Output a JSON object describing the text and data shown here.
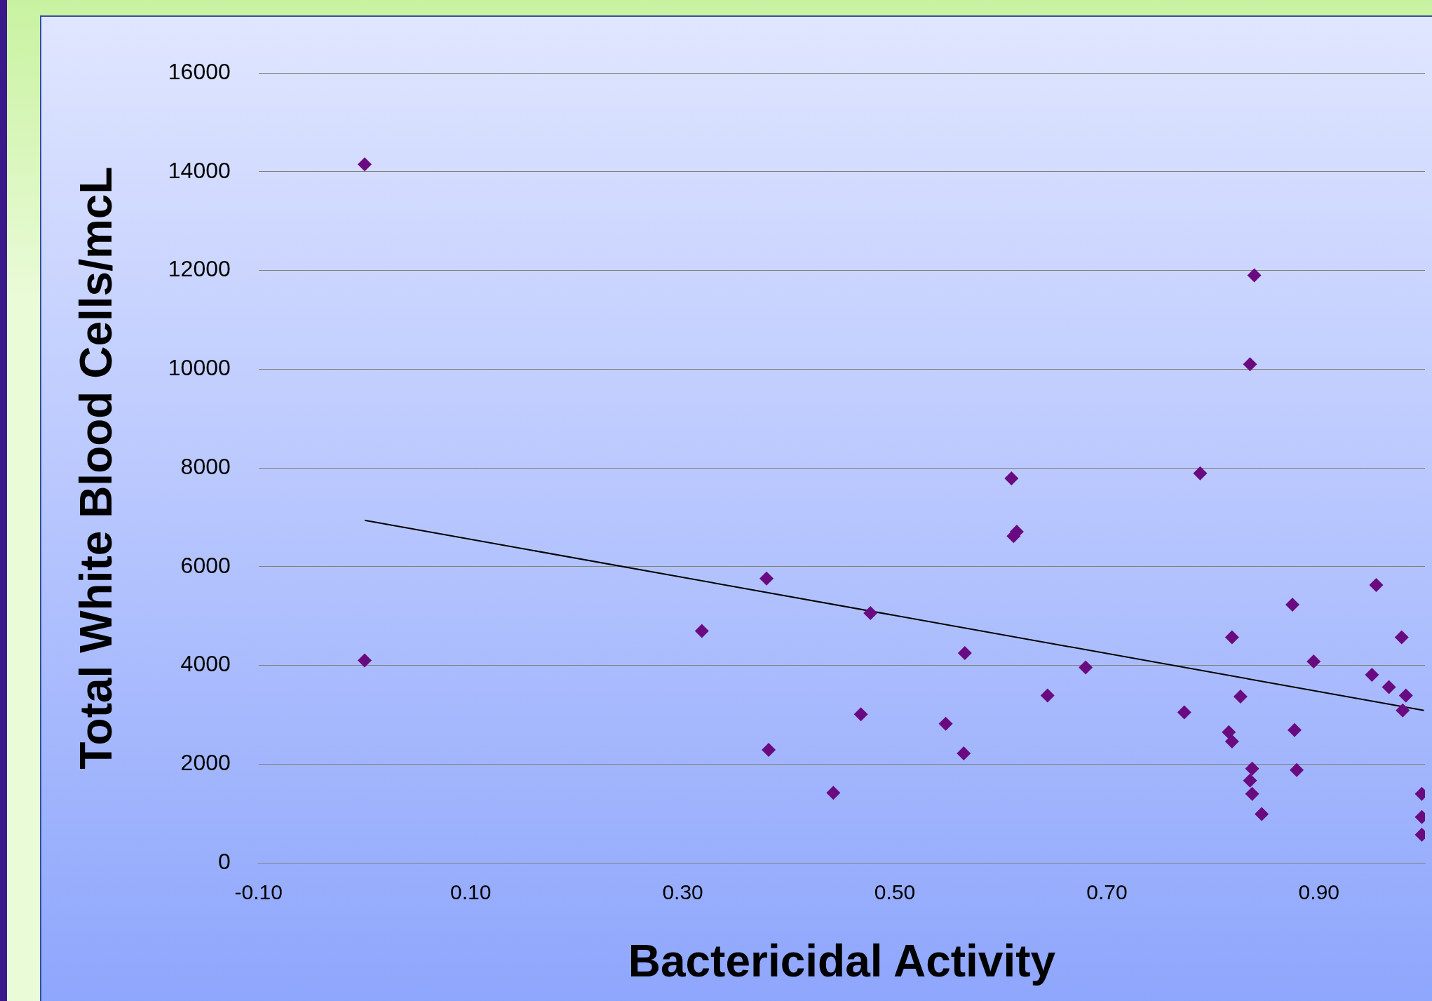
{
  "chart_data": {
    "type": "scatter",
    "xlabel": "Bactericidal Activity",
    "ylabel": "Total White Blood Cells/mcL",
    "xlim": [
      -0.1,
      1.0
    ],
    "xticks": [
      {
        "value": -0.1,
        "label": "-0.10"
      },
      {
        "value": 0.1,
        "label": "0.10"
      },
      {
        "value": 0.3,
        "label": "0.30"
      },
      {
        "value": 0.5,
        "label": "0.50"
      },
      {
        "value": 0.7,
        "label": "0.70"
      },
      {
        "value": 0.9,
        "label": "0.90"
      }
    ],
    "ylim": [
      0,
      16000
    ],
    "yticks": [
      0,
      2000,
      4000,
      6000,
      8000,
      10000,
      12000,
      14000,
      16000
    ],
    "grid": "y",
    "marker": "diamond",
    "series": [
      {
        "type": "scatter",
        "color": "#6a0a80",
        "x": [
          0.0,
          0.0,
          0.318,
          0.379,
          0.381,
          0.442,
          0.468,
          0.477,
          0.548,
          0.566,
          0.565,
          0.61,
          0.612,
          0.615,
          0.644,
          0.68,
          0.773,
          0.788,
          0.815,
          0.818,
          0.818,
          0.826,
          0.835,
          0.839,
          0.837,
          0.835,
          0.837,
          0.846,
          0.875,
          0.877,
          0.879,
          0.895,
          0.95,
          0.954,
          0.966,
          0.978,
          0.982,
          0.979,
          0.997,
          0.997,
          0.997
        ],
        "values": [
          14150,
          4100,
          4700,
          5760,
          2290,
          1420,
          3010,
          5060,
          2820,
          4250,
          2220,
          7790,
          6620,
          6710,
          3390,
          3960,
          3050,
          7890,
          2650,
          2460,
          4570,
          3370,
          10100,
          11900,
          1910,
          1670,
          1400,
          990,
          5230,
          2690,
          1880,
          4080,
          3810,
          5630,
          3560,
          4570,
          3390,
          3090,
          1400,
          930,
          570
        ]
      },
      {
        "type": "line",
        "color": "#000000",
        "marker": "none",
        "x": [
          0.0,
          0.999
        ],
        "values": [
          6940,
          3090
        ]
      }
    ]
  }
}
